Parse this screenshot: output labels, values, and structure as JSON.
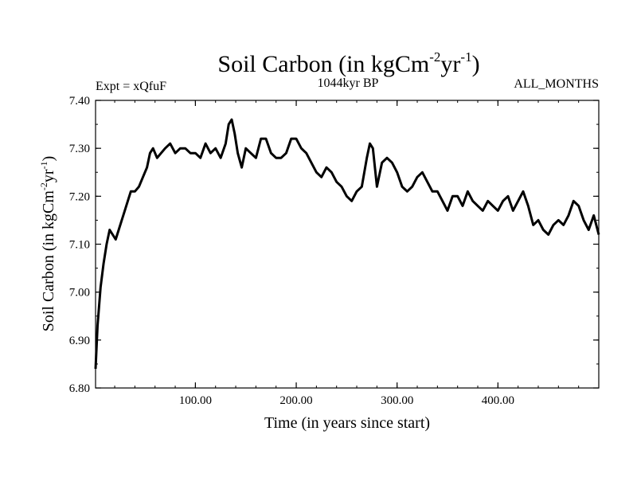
{
  "chart_data": {
    "type": "line",
    "title_main": "Soil Carbon (in kgCm",
    "title_exp1": "-2",
    "title_mid": "yr",
    "title_exp2": "-1",
    "title_end": ")",
    "left_label": "Expt = xQfuF",
    "center_label": "1044kyr BP",
    "right_label": "ALL_MONTHS",
    "xlabel": "Time (in years since start)",
    "ylabel_main": "Soil Carbon (in kgCm",
    "ylabel_exp1": "-2",
    "ylabel_mid": "yr",
    "ylabel_exp2": "-1",
    "ylabel_end": ")",
    "xlim": [
      1,
      500
    ],
    "ylim": [
      6.8,
      7.4
    ],
    "x_ticks": [
      {
        "value": 100,
        "label": "100.00"
      },
      {
        "value": 200,
        "label": "200.00"
      },
      {
        "value": 300,
        "label": "300.00"
      },
      {
        "value": 400,
        "label": "400.00"
      }
    ],
    "y_ticks": [
      {
        "value": 6.8,
        "label": "6.80"
      },
      {
        "value": 6.9,
        "label": "6.90"
      },
      {
        "value": 7.0,
        "label": "7.00"
      },
      {
        "value": 7.1,
        "label": "7.10"
      },
      {
        "value": 7.2,
        "label": "7.20"
      },
      {
        "value": 7.3,
        "label": "7.30"
      },
      {
        "value": 7.4,
        "label": "7.40"
      }
    ],
    "series": [
      {
        "name": "Soil Carbon",
        "x": [
          1,
          3,
          6,
          9,
          12,
          15,
          18,
          21,
          24,
          27,
          30,
          33,
          36,
          40,
          44,
          48,
          52,
          55,
          58,
          62,
          66,
          70,
          75,
          80,
          85,
          90,
          95,
          100,
          105,
          110,
          115,
          120,
          125,
          130,
          133,
          136,
          139,
          142,
          146,
          150,
          155,
          160,
          165,
          170,
          175,
          180,
          185,
          190,
          195,
          200,
          205,
          210,
          215,
          220,
          225,
          230,
          235,
          240,
          245,
          250,
          255,
          260,
          265,
          270,
          273,
          276,
          280,
          285,
          290,
          295,
          300,
          305,
          310,
          315,
          320,
          325,
          330,
          335,
          340,
          345,
          350,
          355,
          360,
          365,
          370,
          375,
          380,
          385,
          390,
          395,
          400,
          405,
          410,
          415,
          420,
          425,
          430,
          435,
          440,
          445,
          450,
          455,
          460,
          465,
          470,
          475,
          480,
          485,
          490,
          495,
          500
        ],
        "values": [
          6.84,
          6.93,
          7.01,
          7.06,
          7.1,
          7.13,
          7.12,
          7.11,
          7.13,
          7.15,
          7.17,
          7.19,
          7.21,
          7.21,
          7.22,
          7.24,
          7.26,
          7.29,
          7.3,
          7.28,
          7.29,
          7.3,
          7.31,
          7.29,
          7.3,
          7.3,
          7.29,
          7.29,
          7.28,
          7.31,
          7.29,
          7.3,
          7.28,
          7.31,
          7.35,
          7.36,
          7.33,
          7.29,
          7.26,
          7.3,
          7.29,
          7.28,
          7.32,
          7.32,
          7.29,
          7.28,
          7.28,
          7.29,
          7.32,
          7.32,
          7.3,
          7.29,
          7.27,
          7.25,
          7.24,
          7.26,
          7.25,
          7.23,
          7.22,
          7.2,
          7.19,
          7.21,
          7.22,
          7.28,
          7.31,
          7.3,
          7.22,
          7.27,
          7.28,
          7.27,
          7.25,
          7.22,
          7.21,
          7.22,
          7.24,
          7.25,
          7.23,
          7.21,
          7.21,
          7.19,
          7.17,
          7.2,
          7.2,
          7.18,
          7.21,
          7.19,
          7.18,
          7.17,
          7.19,
          7.18,
          7.17,
          7.19,
          7.2,
          7.17,
          7.19,
          7.21,
          7.18,
          7.14,
          7.15,
          7.13,
          7.12,
          7.14,
          7.15,
          7.14,
          7.16,
          7.19,
          7.18,
          7.15,
          7.13,
          7.16,
          7.12
        ]
      }
    ]
  }
}
